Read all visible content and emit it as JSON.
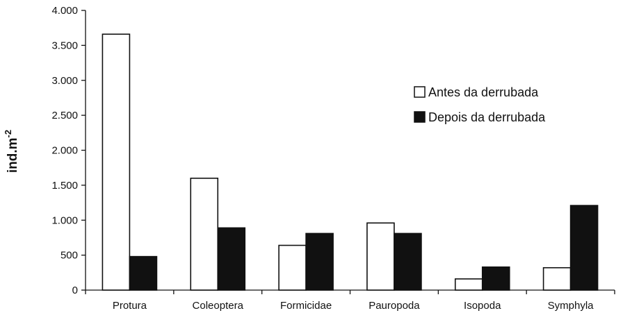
{
  "chart_data": {
    "type": "bar",
    "title": "",
    "xlabel": "",
    "ylabel": "ind.m",
    "ylabel_superscript": "-2",
    "ylim": [
      0,
      4000
    ],
    "yticks": [
      0,
      500,
      1000,
      1500,
      2000,
      2500,
      3000,
      3500,
      4000
    ],
    "ytick_labels": [
      "0",
      "500",
      "1.000",
      "1.500",
      "2.000",
      "2.500",
      "3.000",
      "3.500",
      "4.000"
    ],
    "categories": [
      "Protura",
      "Coleoptera",
      "Formicidae",
      "Pauropoda",
      "Isopoda",
      "Symphyla"
    ],
    "series": [
      {
        "name": "Antes da derrubada",
        "values": [
          3660,
          1600,
          640,
          960,
          160,
          320
        ],
        "color": "#ffffff"
      },
      {
        "name": "Depois da derrubada",
        "values": [
          480,
          890,
          810,
          810,
          330,
          1210
        ],
        "color": "#111111"
      }
    ],
    "legend_position": "top-right",
    "grid": false
  }
}
